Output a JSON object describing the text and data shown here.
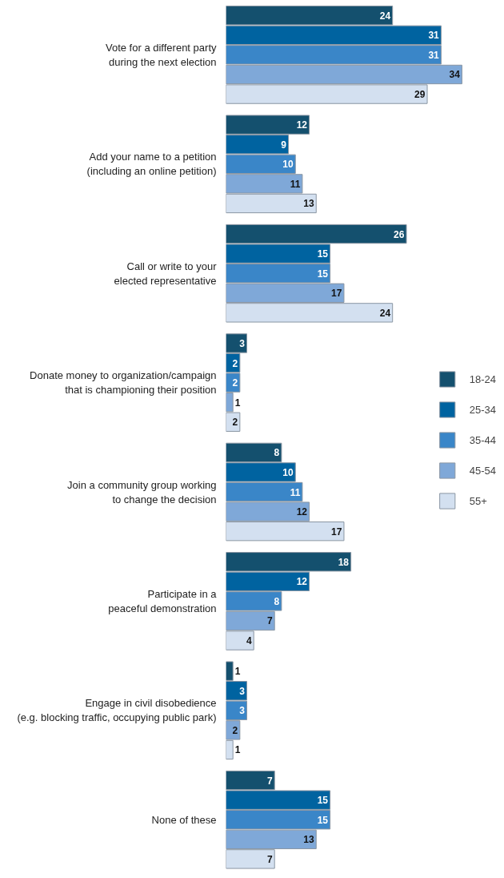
{
  "chart_data": {
    "type": "bar",
    "orientation": "horizontal",
    "data_labels": true,
    "legend": "right",
    "grid": false,
    "categories": [
      "Vote for a different party\nduring the next election",
      "Add your name to a petition\n(including an online petition)",
      "Call or write to your\nelected representative",
      "Donate money to organization/campaign\nthat is championing their position",
      "Join a community group working\nto change the decision",
      "Participate in a\npeaceful demonstration",
      "Engage in civil disobedience\n(e.g. blocking traffic, occupying public park)",
      "None of these"
    ],
    "series": [
      {
        "name": "18-24",
        "color": "#14506e",
        "values": [
          24,
          12,
          26,
          3,
          8,
          18,
          1,
          7
        ]
      },
      {
        "name": "25-34",
        "color": "#0063a0",
        "values": [
          31,
          9,
          15,
          2,
          10,
          12,
          3,
          15
        ]
      },
      {
        "name": "35-44",
        "color": "#3a86c8",
        "values": [
          31,
          10,
          15,
          2,
          11,
          8,
          3,
          15
        ]
      },
      {
        "name": "45-54",
        "color": "#7fa8d8",
        "values": [
          34,
          11,
          17,
          1,
          12,
          7,
          2,
          13
        ]
      },
      {
        "name": "55+",
        "color": "#d3e0f0",
        "values": [
          29,
          13,
          24,
          2,
          17,
          4,
          1,
          7
        ]
      }
    ]
  }
}
